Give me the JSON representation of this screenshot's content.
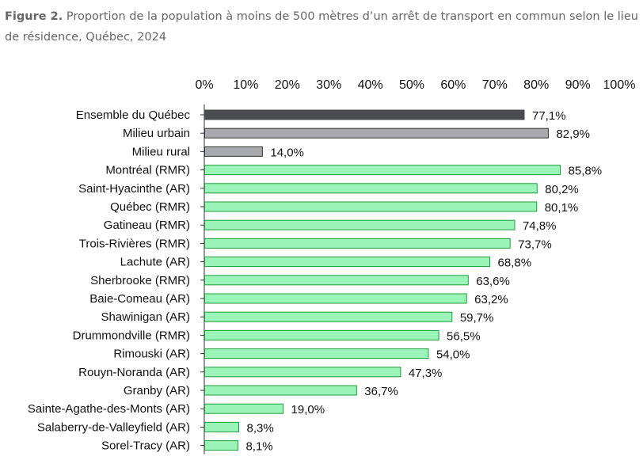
{
  "figure": {
    "label": "Figure 2.",
    "caption": "Proportion de la population à moins de 500 mètres d’un arrêt de transport en commun selon le lieu de résidence, Québec, 2024"
  },
  "colors": {
    "dark": "#4a4c50",
    "gray": "#a7a9ac",
    "green": "#9cf5b8",
    "green_border": "#1f9a3c",
    "axis": "#333333"
  },
  "chart_data": {
    "type": "bar",
    "orientation": "horizontal",
    "title": "Proportion de la population à moins de 500 mètres d’un arrêt de transport en commun selon le lieu de résidence, Québec, 2024",
    "xlabel": "",
    "ylabel": "",
    "xlim": [
      0,
      100
    ],
    "x_axis_position": "top",
    "grid": false,
    "x_ticks": [
      0,
      10,
      20,
      30,
      40,
      50,
      60,
      70,
      80,
      90,
      100
    ],
    "x_tick_labels": [
      "0%",
      "10%",
      "20%",
      "30%",
      "40%",
      "50%",
      "60%",
      "70%",
      "80%",
      "90%",
      "100%"
    ],
    "categories": [
      "Ensemble du Québec",
      "Milieu urbain",
      "Milieu rural",
      "Montréal (RMR)",
      "Saint-Hyacinthe (AR)",
      "Québec (RMR)",
      "Gatineau (RMR)",
      "Trois-Rivières (RMR)",
      "Lachute (AR)",
      "Sherbrooke (RMR)",
      "Baie-Comeau (AR)",
      "Shawinigan (AR)",
      "Drummondville (RMR)",
      "Rimouski (AR)",
      "Rouyn-Noranda (AR)",
      "Granby (AR)",
      "Sainte-Agathe-des-Monts (AR)",
      "Salaberry-de-Valleyfield (AR)",
      "Sorel-Tracy (AR)"
    ],
    "values": [
      77.1,
      82.9,
      14.0,
      85.8,
      80.2,
      80.1,
      74.8,
      73.7,
      68.8,
      63.6,
      63.2,
      59.7,
      56.5,
      54.0,
      47.3,
      36.7,
      19.0,
      8.3,
      8.1
    ],
    "value_labels": [
      "77,1%",
      "82,9%",
      "14,0%",
      "85,8%",
      "80,2%",
      "80,1%",
      "74,8%",
      "73,7%",
      "68,8%",
      "63,6%",
      "63,2%",
      "59,7%",
      "56,5%",
      "54,0%",
      "47,3%",
      "36,7%",
      "19,0%",
      "8,3%",
      "8,1%"
    ],
    "bar_styles": [
      "dark",
      "gray",
      "gray",
      "green",
      "green",
      "green",
      "green",
      "green",
      "green",
      "green",
      "green",
      "green",
      "green",
      "green",
      "green",
      "green",
      "green",
      "green",
      "green"
    ]
  }
}
